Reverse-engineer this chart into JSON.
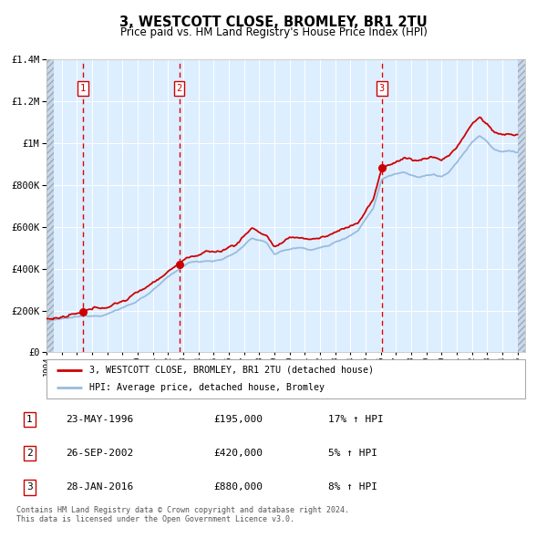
{
  "title": "3, WESTCOTT CLOSE, BROMLEY, BR1 2TU",
  "subtitle": "Price paid vs. HM Land Registry's House Price Index (HPI)",
  "y_ticks": [
    0,
    200000,
    400000,
    600000,
    800000,
    1000000,
    1200000,
    1400000
  ],
  "sale_dates_decimal": [
    1996.3863,
    2002.7397,
    2016.0685
  ],
  "sale_prices": [
    195000,
    420000,
    880000
  ],
  "sale_labels": [
    "1",
    "2",
    "3"
  ],
  "sale_annotations": [
    {
      "label": "1",
      "date": "23-MAY-1996",
      "price_str": "£195,000",
      "hpi_str": "17% ↑ HPI"
    },
    {
      "label": "2",
      "date": "26-SEP-2002",
      "price_str": "£420,000",
      "hpi_str": "5% ↑ HPI"
    },
    {
      "label": "3",
      "date": "28-JAN-2016",
      "price_str": "£880,000",
      "hpi_str": "8% ↑ HPI"
    }
  ],
  "line_color_red": "#cc0000",
  "line_color_blue": "#99bbdd",
  "dot_color": "#cc0000",
  "dashed_line_color": "#dd0000",
  "bg_color_main": "#ddeeff",
  "bg_color_hatch": "#c8d8e8",
  "grid_color": "#ffffff",
  "legend_label_red": "3, WESTCOTT CLOSE, BROMLEY, BR1 2TU (detached house)",
  "legend_label_blue": "HPI: Average price, detached house, Bromley",
  "footer_text": "Contains HM Land Registry data © Crown copyright and database right 2024.\nThis data is licensed under the Open Government Licence v3.0."
}
